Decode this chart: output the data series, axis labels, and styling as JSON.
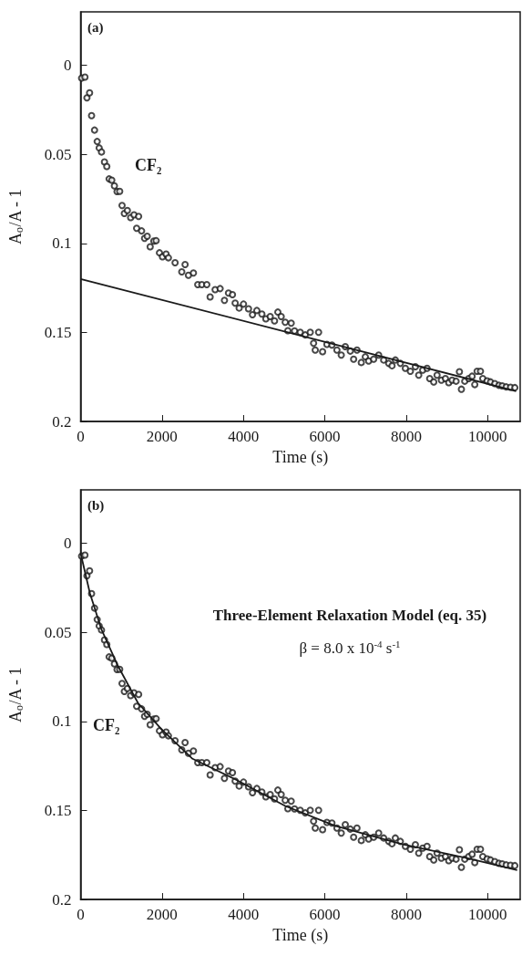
{
  "chart_data": [
    {
      "type": "scatter",
      "title": "(a)",
      "xlabel": "Time (s)",
      "ylabel": "A$_{o}$/A - 1",
      "xlim": [
        0,
        10800
      ],
      "xticks": [
        0,
        2000,
        4000,
        6000,
        8000,
        10000
      ],
      "ylim": [
        0.2,
        -0.03
      ],
      "yticks": [
        0,
        0.05,
        0.1,
        0.15,
        0.2
      ],
      "marker": "circle",
      "annotations": [
        "CF₂"
      ],
      "x": [
        24,
        106,
        155,
        220,
        269,
        342,
        407,
        456,
        513,
        586,
        643,
        700,
        765,
        830,
        895,
        960,
        1018,
        1074,
        1148,
        1229,
        1311,
        1376,
        1425,
        1498,
        1571,
        1636,
        1709,
        1799,
        1856,
        1937,
        2011,
        2100,
        2157,
        2321,
        2485,
        2567,
        2649,
        2772,
        2878,
        2977,
        3100,
        3182,
        3305,
        3428,
        3534,
        3633,
        3731,
        3797,
        3895,
        4002,
        4125,
        4223,
        4330,
        4453,
        4551,
        4658,
        4764,
        4846,
        4928,
        5027,
        5092,
        5174,
        5256,
        5396,
        5519,
        5642,
        5724,
        5765,
        5847,
        5945,
        6052,
        6175,
        6298,
        6404,
        6503,
        6626,
        6708,
        6790,
        6896,
        6995,
        7077,
        7200,
        7323,
        7446,
        7569,
        7651,
        7733,
        7856,
        7979,
        8102,
        8225,
        8307,
        8405,
        8512,
        8577,
        8676,
        8758,
        8864,
        8963,
        9045,
        9127,
        9225,
        9307,
        9356,
        9438,
        9536,
        9618,
        9684,
        9742,
        9824,
        9881,
        9988,
        10070,
        10176,
        10275,
        10357,
        10455,
        10562,
        10668
      ],
      "series": [
        {
          "color": "#1a1a1a",
          "values": [
            0.0072,
            0.0066,
            0.0183,
            0.0155,
            0.0283,
            0.0364,
            0.0428,
            0.0464,
            0.0487,
            0.0543,
            0.0568,
            0.0638,
            0.0645,
            0.0677,
            0.0709,
            0.0708,
            0.0787,
            0.0832,
            0.0815,
            0.0855,
            0.084,
            0.0915,
            0.0849,
            0.093,
            0.0972,
            0.096,
            0.1019,
            0.0987,
            0.0985,
            0.1053,
            0.1075,
            0.106,
            0.1081,
            0.1109,
            0.116,
            0.1119,
            0.1179,
            0.1166,
            0.1232,
            0.1232,
            0.1232,
            0.1301,
            0.126,
            0.1254,
            0.132,
            0.1279,
            0.1288,
            0.1335,
            0.1363,
            0.1341,
            0.1367,
            0.1401,
            0.1377,
            0.1397,
            0.1424,
            0.1411,
            0.1435,
            0.1386,
            0.1411,
            0.1443,
            0.149,
            0.1448,
            0.1492,
            0.1499,
            0.1514,
            0.1499,
            0.1561,
            0.1599,
            0.1499,
            0.1608,
            0.1567,
            0.1571,
            0.1599,
            0.1627,
            0.158,
            0.1605,
            0.165,
            0.1599,
            0.1669,
            0.1637,
            0.1661,
            0.165,
            0.1627,
            0.1655,
            0.1674,
            0.1687,
            0.1655,
            0.1674,
            0.1702,
            0.1718,
            0.1693,
            0.174,
            0.1712,
            0.1702,
            0.1759,
            0.1778,
            0.174,
            0.1768,
            0.1759,
            0.1782,
            0.1768,
            0.1774,
            0.1721,
            0.1819,
            0.1774,
            0.1759,
            0.1746,
            0.1793,
            0.1718,
            0.1718,
            0.1759,
            0.1772,
            0.1778,
            0.1787,
            0.1797,
            0.18,
            0.1806,
            0.1808,
            0.181
          ]
        },
        {
          "type": "line",
          "marker": "none",
          "line_style": "solid",
          "color": "#1a1a1a",
          "x": [
            0,
            10700
          ],
          "values": [
            0.12,
            0.183
          ]
        }
      ]
    },
    {
      "type": "scatter",
      "title": "(b)",
      "xlabel": "Time (s)",
      "ylabel": "A$_{o}$/A - 1",
      "xlim": [
        0,
        10800
      ],
      "xticks": [
        0,
        2000,
        4000,
        6000,
        8000,
        10000
      ],
      "ylim": [
        0.2,
        -0.03
      ],
      "yticks": [
        0,
        0.05,
        0.1,
        0.15,
        0.2
      ],
      "marker": "circle",
      "annotations": [
        "CF₂",
        "Three-Element Relaxation Model (eq. 35)",
        "β = 8.0 x 10$^{-4}$ s$^{-1}$"
      ],
      "x": [
        24,
        106,
        155,
        220,
        269,
        342,
        407,
        456,
        513,
        586,
        643,
        700,
        765,
        830,
        895,
        960,
        1018,
        1074,
        1148,
        1229,
        1311,
        1376,
        1425,
        1498,
        1571,
        1636,
        1709,
        1799,
        1856,
        1937,
        2011,
        2100,
        2157,
        2321,
        2485,
        2567,
        2649,
        2772,
        2878,
        2977,
        3100,
        3182,
        3305,
        3428,
        3534,
        3633,
        3731,
        3797,
        3895,
        4002,
        4125,
        4223,
        4330,
        4453,
        4551,
        4658,
        4764,
        4846,
        4928,
        5027,
        5092,
        5174,
        5256,
        5396,
        5519,
        5642,
        5724,
        5765,
        5847,
        5945,
        6052,
        6175,
        6298,
        6404,
        6503,
        6626,
        6708,
        6790,
        6896,
        6995,
        7077,
        7200,
        7323,
        7446,
        7569,
        7651,
        7733,
        7856,
        7979,
        8102,
        8225,
        8307,
        8405,
        8512,
        8577,
        8676,
        8758,
        8864,
        8963,
        9045,
        9127,
        9225,
        9307,
        9356,
        9438,
        9536,
        9618,
        9684,
        9742,
        9824,
        9881,
        9988,
        10070,
        10176,
        10275,
        10357,
        10455,
        10562,
        10668
      ],
      "series": [
        {
          "color": "#1a1a1a",
          "values": [
            0.0072,
            0.0066,
            0.0183,
            0.0155,
            0.0283,
            0.0364,
            0.0428,
            0.0464,
            0.0487,
            0.0543,
            0.0568,
            0.0638,
            0.0645,
            0.0677,
            0.0709,
            0.0708,
            0.0787,
            0.0832,
            0.0815,
            0.0855,
            0.084,
            0.0915,
            0.0849,
            0.093,
            0.0972,
            0.096,
            0.1019,
            0.0987,
            0.0985,
            0.1053,
            0.1075,
            0.106,
            0.1081,
            0.1109,
            0.116,
            0.1119,
            0.1179,
            0.1166,
            0.1232,
            0.1232,
            0.1232,
            0.1301,
            0.126,
            0.1254,
            0.132,
            0.1279,
            0.1288,
            0.1335,
            0.1363,
            0.1341,
            0.1367,
            0.1401,
            0.1377,
            0.1397,
            0.1424,
            0.1411,
            0.1435,
            0.1386,
            0.1411,
            0.1443,
            0.149,
            0.1448,
            0.1492,
            0.1499,
            0.1514,
            0.1499,
            0.1561,
            0.1599,
            0.1499,
            0.1608,
            0.1567,
            0.1571,
            0.1599,
            0.1627,
            0.158,
            0.1605,
            0.165,
            0.1599,
            0.1669,
            0.1637,
            0.1661,
            0.165,
            0.1627,
            0.1655,
            0.1674,
            0.1687,
            0.1655,
            0.1674,
            0.1702,
            0.1718,
            0.1693,
            0.174,
            0.1712,
            0.1702,
            0.1759,
            0.1778,
            0.174,
            0.1768,
            0.1759,
            0.1782,
            0.1768,
            0.1774,
            0.1721,
            0.1819,
            0.1774,
            0.1759,
            0.1746,
            0.1793,
            0.1718,
            0.1718,
            0.1759,
            0.1772,
            0.1778,
            0.1787,
            0.1797,
            0.18,
            0.1806,
            0.1808,
            0.181
          ]
        },
        {
          "type": "line",
          "marker": "none",
          "line_style": "solid",
          "color": "#1a1a1a",
          "x": [
            0,
            228,
            513,
            920,
            1408,
            1980,
            2750,
            3797,
            5027,
            6257,
            7897,
            9537,
            10726
          ],
          "values": [
            0.0056,
            0.028,
            0.0485,
            0.069,
            0.0896,
            0.1043,
            0.121,
            0.1325,
            0.1475,
            0.1587,
            0.169,
            0.177,
            0.1835
          ]
        }
      ]
    }
  ]
}
